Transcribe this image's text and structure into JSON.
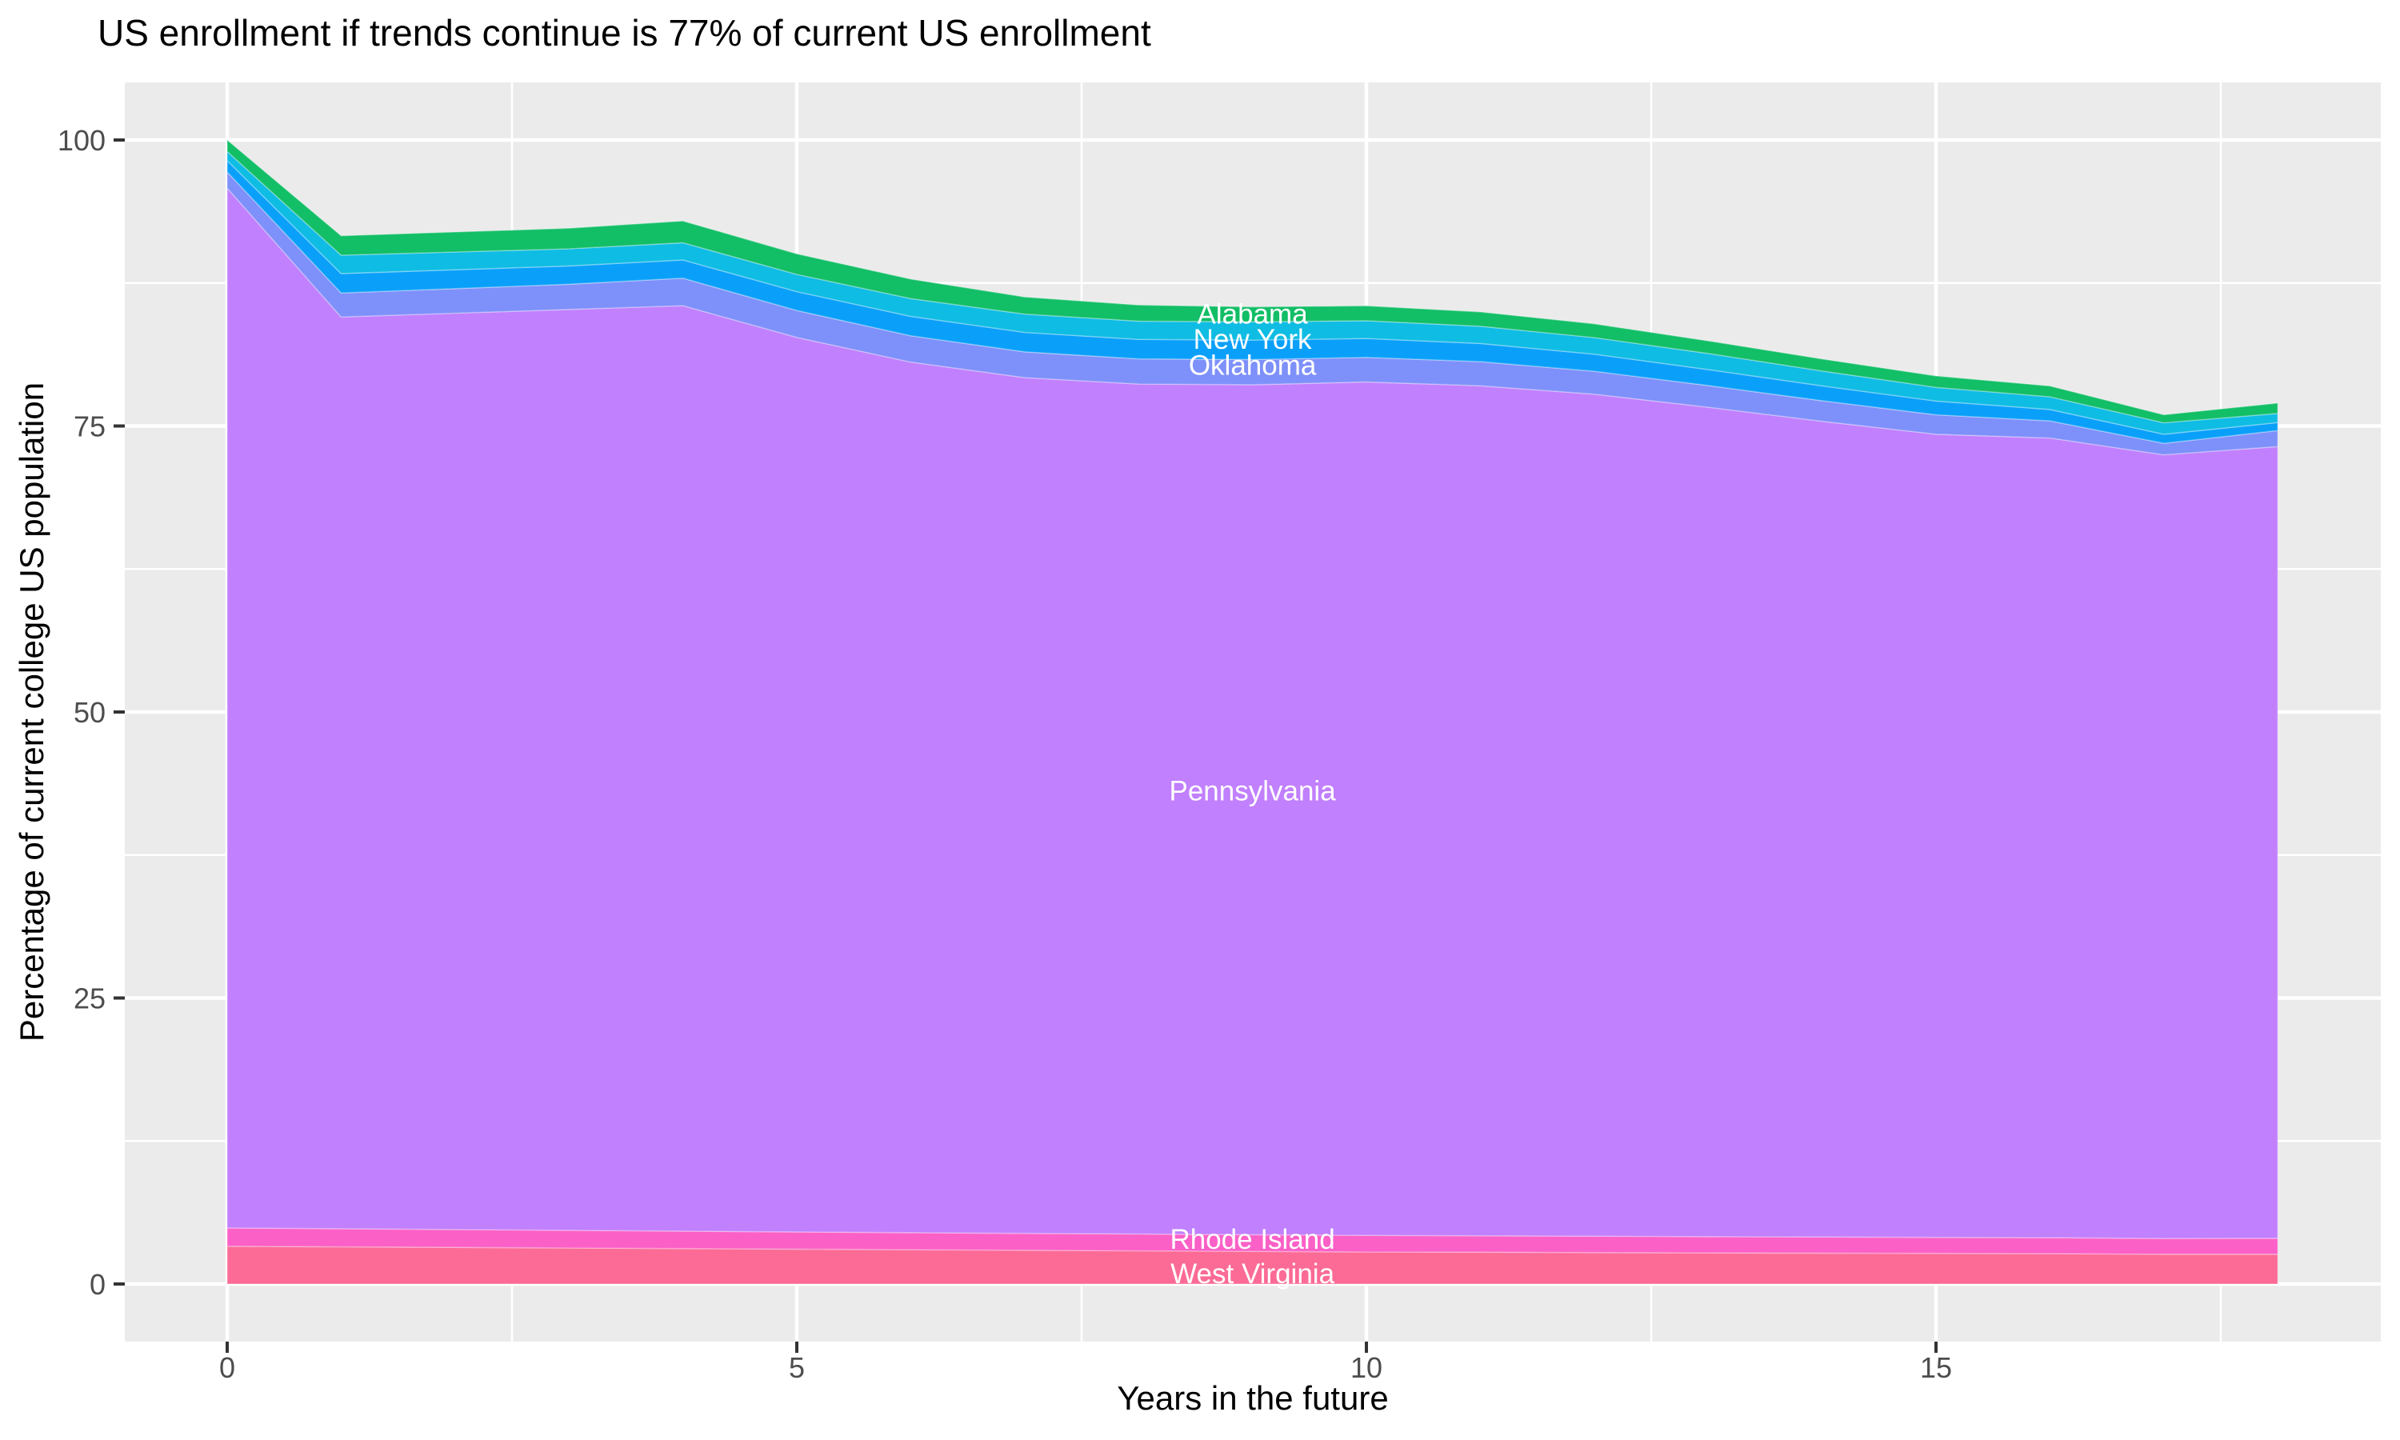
{
  "title": "US enrollment if trends continue is 77% of current US enrollment",
  "colors": {
    "panel_bg": "#EBEBEB",
    "grid": "#FFFFFF",
    "tick_mark": "#333333",
    "tick_label": "#4D4D4D",
    "title_text": "#000000",
    "area_label_text": "#FFFFFF"
  },
  "chart_data": {
    "type": "area",
    "stacked": true,
    "title": "US enrollment if trends continue is 77% of current US enrollment",
    "xlabel": "Years in the future",
    "ylabel": "Percentage of current college US population",
    "xlim": [
      0,
      18
    ],
    "ylim": [
      0,
      100
    ],
    "grid": true,
    "legend": "none (direct labels on areas)",
    "x": [
      0,
      1,
      2,
      3,
      4,
      5,
      6,
      7,
      8,
      9,
      10,
      11,
      12,
      13,
      14,
      15,
      16,
      17,
      18
    ],
    "x_ticks": [
      0,
      5,
      10,
      15
    ],
    "y_ticks": [
      0,
      25,
      50,
      75,
      100
    ],
    "x_minor_ticks": [
      2.5,
      7.5,
      12.5,
      17.5
    ],
    "y_minor_ticks": [
      12.5,
      37.5,
      62.5,
      87.5
    ],
    "total_end_percent": 77,
    "series": [
      {
        "name": "West Virginia",
        "color": "#FB6B95",
        "values": [
          3.3,
          3.25,
          3.2,
          3.15,
          3.1,
          3.05,
          3.0,
          2.95,
          2.9,
          2.85,
          2.8,
          2.78,
          2.75,
          2.72,
          2.7,
          2.68,
          2.65,
          2.6,
          2.6
        ],
        "label": {
          "text": "West Virginia",
          "x": 9.0,
          "y": 0.9
        }
      },
      {
        "name": "Rhode Island",
        "color": "#FB60C7",
        "values": [
          1.6,
          1.58,
          1.56,
          1.54,
          1.52,
          1.5,
          1.49,
          1.48,
          1.47,
          1.46,
          1.45,
          1.44,
          1.43,
          1.42,
          1.41,
          1.4,
          1.4,
          1.38,
          1.4
        ],
        "label": {
          "text": "Rhode Island",
          "x": 9.0,
          "y": 3.9
        }
      },
      {
        "name": "Pennsylvania",
        "color": "#C180FE",
        "values": [
          90.9,
          79.7,
          80.1,
          80.5,
          80.9,
          78.2,
          76.1,
          74.8,
          74.3,
          74.3,
          74.6,
          74.3,
          73.6,
          72.5,
          71.3,
          70.2,
          69.9,
          68.5,
          69.2
        ],
        "label": {
          "text": "Pennsylvania",
          "x": 9.0,
          "y": 43.1
        }
      },
      {
        "name": "Oklahoma",
        "color": "#7E90FA",
        "values": [
          1.4,
          2.1,
          2.15,
          2.2,
          2.4,
          2.35,
          2.3,
          2.25,
          2.2,
          2.2,
          2.15,
          2.1,
          2.0,
          1.9,
          1.8,
          1.7,
          1.5,
          1.0,
          1.4
        ],
        "label": {
          "text": "Oklahoma",
          "x": 9.0,
          "y": 80.3
        }
      },
      {
        "name": "New York",
        "color": "#0AA0FA",
        "values": [
          1.0,
          1.7,
          1.65,
          1.6,
          1.6,
          1.65,
          1.7,
          1.7,
          1.7,
          1.7,
          1.65,
          1.6,
          1.5,
          1.4,
          1.3,
          1.2,
          1.0,
          0.8,
          0.7
        ],
        "label": {
          "text": "New York",
          "x": 9.0,
          "y": 82.6
        }
      },
      {
        "name": "",
        "color": "#0FBCE3",
        "values": [
          0.8,
          1.6,
          1.55,
          1.5,
          1.5,
          1.5,
          1.55,
          1.6,
          1.6,
          1.6,
          1.55,
          1.5,
          1.45,
          1.4,
          1.3,
          1.2,
          1.1,
          1.0,
          0.8
        ],
        "label": null
      },
      {
        "name": "Alabama",
        "color": "#12BE66",
        "values": [
          1.0,
          1.7,
          1.75,
          1.8,
          1.9,
          1.8,
          1.7,
          1.5,
          1.4,
          1.3,
          1.3,
          1.25,
          1.2,
          1.1,
          1.05,
          1.0,
          0.95,
          0.7,
          0.9
        ],
        "label": {
          "text": "Alabama",
          "x": 9.0,
          "y": 84.8
        }
      }
    ]
  }
}
